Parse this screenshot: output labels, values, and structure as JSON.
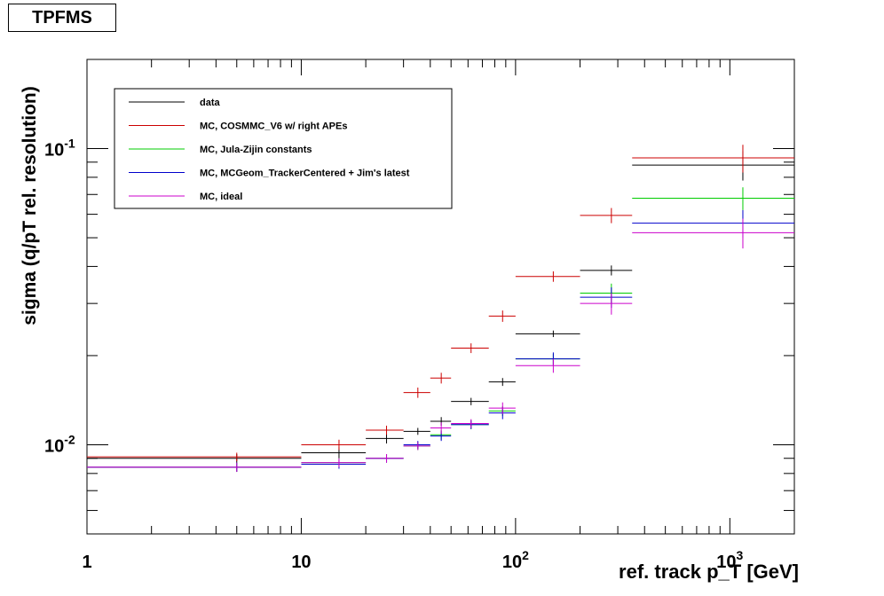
{
  "title": "TPFMS",
  "chart_data": {
    "type": "scatter",
    "xlabel": "ref. track p_T [GeV]",
    "ylabel": "sigma (q/pT rel. resolution)",
    "xscale": "log",
    "yscale": "log",
    "xlim": [
      1,
      2000
    ],
    "ylim": [
      0.005,
      0.2
    ],
    "x_tick_labels": [
      "1",
      "10",
      "10^2",
      "10^3"
    ],
    "y_tick_labels": [
      "10^-2",
      "10^-1"
    ],
    "legend_position": "top-left",
    "series": [
      {
        "name": "data",
        "color": "#000000",
        "points": [
          {
            "xlo": 1,
            "xhi": 10,
            "x": 5,
            "y": 0.009,
            "ey": 0.0003
          },
          {
            "xlo": 10,
            "xhi": 20,
            "x": 15,
            "y": 0.0094,
            "ey": 0.0004
          },
          {
            "xlo": 20,
            "xhi": 30,
            "x": 25,
            "y": 0.0105,
            "ey": 0.0004
          },
          {
            "xlo": 30,
            "xhi": 40,
            "x": 35,
            "y": 0.0111,
            "ey": 0.0003
          },
          {
            "xlo": 40,
            "xhi": 50,
            "x": 45,
            "y": 0.012,
            "ey": 0.0004
          },
          {
            "xlo": 50,
            "xhi": 75,
            "x": 62,
            "y": 0.014,
            "ey": 0.0004
          },
          {
            "xlo": 75,
            "xhi": 100,
            "x": 87,
            "y": 0.0163,
            "ey": 0.0005
          },
          {
            "xlo": 100,
            "xhi": 200,
            "x": 150,
            "y": 0.0237,
            "ey": 0.0006
          },
          {
            "xlo": 200,
            "xhi": 350,
            "x": 280,
            "y": 0.0388,
            "ey": 0.0015
          },
          {
            "xlo": 350,
            "xhi": 2000,
            "x": 1150,
            "y": 0.088,
            "ey": 0.01
          }
        ]
      },
      {
        "name": "MC, COSMMC_V6 w/ right APEs",
        "color": "#cc0000",
        "points": [
          {
            "xlo": 1,
            "xhi": 10,
            "x": 5,
            "y": 0.0091,
            "ey": 0.0003
          },
          {
            "xlo": 10,
            "xhi": 20,
            "x": 15,
            "y": 0.01,
            "ey": 0.0004
          },
          {
            "xlo": 20,
            "xhi": 30,
            "x": 25,
            "y": 0.0112,
            "ey": 0.0004
          },
          {
            "xlo": 30,
            "xhi": 40,
            "x": 35,
            "y": 0.015,
            "ey": 0.0006
          },
          {
            "xlo": 40,
            "xhi": 50,
            "x": 45,
            "y": 0.0168,
            "ey": 0.0007
          },
          {
            "xlo": 50,
            "xhi": 75,
            "x": 62,
            "y": 0.0212,
            "ey": 0.0008
          },
          {
            "xlo": 75,
            "xhi": 100,
            "x": 87,
            "y": 0.0272,
            "ey": 0.0012
          },
          {
            "xlo": 100,
            "xhi": 200,
            "x": 150,
            "y": 0.037,
            "ey": 0.0015
          },
          {
            "xlo": 200,
            "xhi": 350,
            "x": 280,
            "y": 0.0595,
            "ey": 0.0035
          },
          {
            "xlo": 350,
            "xhi": 2000,
            "x": 1150,
            "y": 0.093,
            "ey": 0.01
          }
        ]
      },
      {
        "name": "MC, Jula-Zijin constants",
        "color": "#00cc00",
        "points": [
          {
            "xlo": 1,
            "xhi": 10,
            "x": 5,
            "y": 0.0084,
            "ey": 0.0003
          },
          {
            "xlo": 10,
            "xhi": 20,
            "x": 15,
            "y": 0.0087,
            "ey": 0.0003
          },
          {
            "xlo": 20,
            "xhi": 30,
            "x": 25,
            "y": 0.009,
            "ey": 0.0003
          },
          {
            "xlo": 30,
            "xhi": 40,
            "x": 35,
            "y": 0.0099,
            "ey": 0.0003
          },
          {
            "xlo": 40,
            "xhi": 50,
            "x": 45,
            "y": 0.0108,
            "ey": 0.0004
          },
          {
            "xlo": 50,
            "xhi": 75,
            "x": 62,
            "y": 0.0117,
            "ey": 0.0004
          },
          {
            "xlo": 75,
            "xhi": 100,
            "x": 87,
            "y": 0.013,
            "ey": 0.0005
          },
          {
            "xlo": 100,
            "xhi": 200,
            "x": 150,
            "y": 0.0195,
            "ey": 0.0008
          },
          {
            "xlo": 200,
            "xhi": 350,
            "x": 280,
            "y": 0.0325,
            "ey": 0.0025
          },
          {
            "xlo": 350,
            "xhi": 2000,
            "x": 1150,
            "y": 0.068,
            "ey": 0.006
          }
        ]
      },
      {
        "name": "MC, MCGeom_TrackerCentered + Jim's latest",
        "color": "#0000cc",
        "points": [
          {
            "xlo": 1,
            "xhi": 10,
            "x": 5,
            "y": 0.0084,
            "ey": 0.0003
          },
          {
            "xlo": 10,
            "xhi": 20,
            "x": 15,
            "y": 0.0086,
            "ey": 0.0003
          },
          {
            "xlo": 20,
            "xhi": 30,
            "x": 25,
            "y": 0.009,
            "ey": 0.0003
          },
          {
            "xlo": 30,
            "xhi": 40,
            "x": 35,
            "y": 0.01,
            "ey": 0.0003
          },
          {
            "xlo": 40,
            "xhi": 50,
            "x": 45,
            "y": 0.0107,
            "ey": 0.0004
          },
          {
            "xlo": 50,
            "xhi": 75,
            "x": 62,
            "y": 0.0117,
            "ey": 0.0004
          },
          {
            "xlo": 75,
            "xhi": 100,
            "x": 87,
            "y": 0.0128,
            "ey": 0.0006
          },
          {
            "xlo": 100,
            "xhi": 200,
            "x": 150,
            "y": 0.0195,
            "ey": 0.001
          },
          {
            "xlo": 200,
            "xhi": 350,
            "x": 280,
            "y": 0.0315,
            "ey": 0.0025
          },
          {
            "xlo": 350,
            "xhi": 2000,
            "x": 1150,
            "y": 0.056,
            "ey": 0.006
          }
        ]
      },
      {
        "name": "MC, ideal",
        "color": "#cc00cc",
        "points": [
          {
            "xlo": 1,
            "xhi": 10,
            "x": 5,
            "y": 0.0084,
            "ey": 0.0003
          },
          {
            "xlo": 10,
            "xhi": 20,
            "x": 15,
            "y": 0.0087,
            "ey": 0.0003
          },
          {
            "xlo": 20,
            "xhi": 30,
            "x": 25,
            "y": 0.009,
            "ey": 0.0003
          },
          {
            "xlo": 30,
            "xhi": 40,
            "x": 35,
            "y": 0.0099,
            "ey": 0.0003
          },
          {
            "xlo": 40,
            "xhi": 50,
            "x": 45,
            "y": 0.0114,
            "ey": 0.0005
          },
          {
            "xlo": 50,
            "xhi": 75,
            "x": 62,
            "y": 0.0118,
            "ey": 0.0004
          },
          {
            "xlo": 75,
            "xhi": 100,
            "x": 87,
            "y": 0.0133,
            "ey": 0.0006
          },
          {
            "xlo": 100,
            "xhi": 200,
            "x": 150,
            "y": 0.0185,
            "ey": 0.001
          },
          {
            "xlo": 200,
            "xhi": 350,
            "x": 280,
            "y": 0.03,
            "ey": 0.0025
          },
          {
            "xlo": 350,
            "xhi": 2000,
            "x": 1150,
            "y": 0.052,
            "ey": 0.006
          }
        ]
      }
    ]
  }
}
